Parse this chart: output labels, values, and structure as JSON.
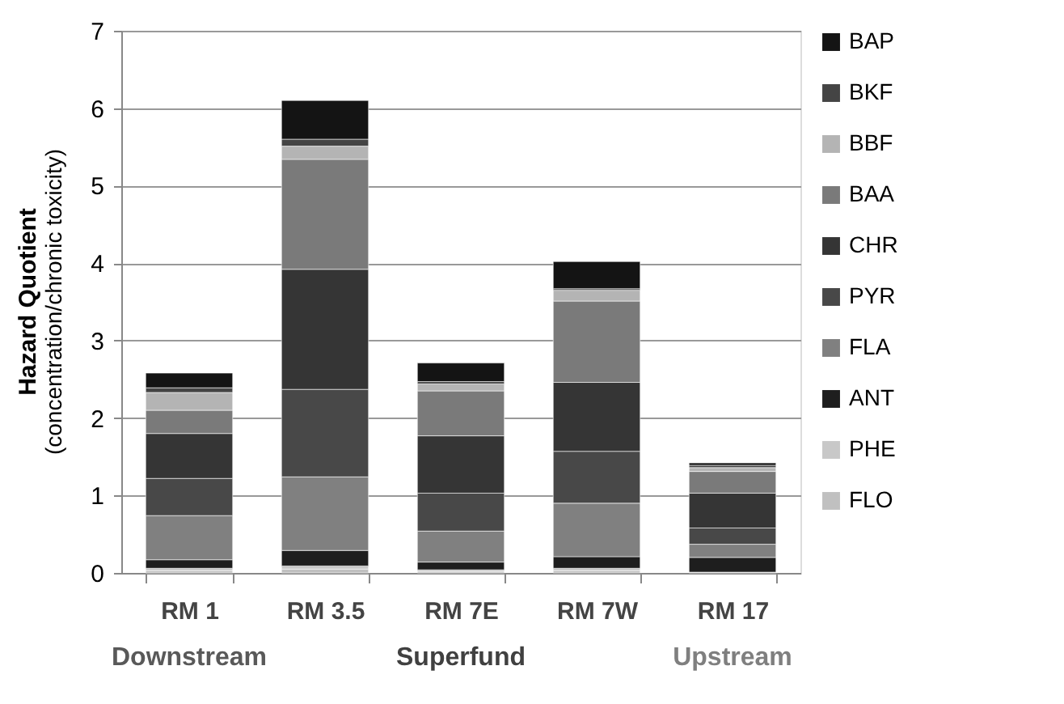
{
  "chart_data": {
    "type": "bar",
    "stacked": true,
    "ylabel": "Hazard Quotient\n(concentration/chronic toxicity)",
    "categories": [
      "RM 1",
      "RM 3.5",
      "RM 7E",
      "RM 7W",
      "RM 17"
    ],
    "series": [
      {
        "name": "FLO",
        "color": "#c0c0c0",
        "values": [
          0.03,
          0.05,
          0.02,
          0.03,
          null
        ]
      },
      {
        "name": "PHE",
        "color": "#c8c8c8",
        "values": [
          0.03,
          0.04,
          0.02,
          0.03,
          0.01
        ]
      },
      {
        "name": "ANT",
        "color": "#1e1e1e",
        "values": [
          0.11,
          0.2,
          0.1,
          0.15,
          0.19
        ]
      },
      {
        "name": "FLA",
        "color": "#808080",
        "values": [
          0.57,
          0.95,
          0.4,
          0.69,
          0.17
        ]
      },
      {
        "name": "PYR",
        "color": "#484848",
        "values": [
          0.48,
          1.13,
          0.49,
          0.67,
          0.21
        ]
      },
      {
        "name": "CHR",
        "color": "#353535",
        "values": [
          0.58,
          1.55,
          0.74,
          0.89,
          0.45
        ]
      },
      {
        "name": "BAA",
        "color": "#7a7a7a",
        "values": [
          0.3,
          1.42,
          0.58,
          1.05,
          0.28
        ]
      },
      {
        "name": "BBF",
        "color": "#b4b4b4",
        "values": [
          0.23,
          0.17,
          0.09,
          0.14,
          0.05
        ]
      },
      {
        "name": "BKF",
        "color": "#444444",
        "values": [
          0.06,
          0.09,
          0.03,
          0.02,
          0.03
        ]
      },
      {
        "name": "BAP",
        "color": "#141414",
        "values": [
          0.19,
          0.5,
          0.24,
          0.35,
          0.03
        ]
      }
    ],
    "ylim": [
      0,
      7
    ],
    "yticks": [
      0,
      1,
      2,
      3,
      4,
      5,
      6,
      7
    ],
    "grid": "y",
    "legend": "right",
    "annotations": [
      "Downstream",
      "Superfund",
      "Upstream"
    ]
  }
}
